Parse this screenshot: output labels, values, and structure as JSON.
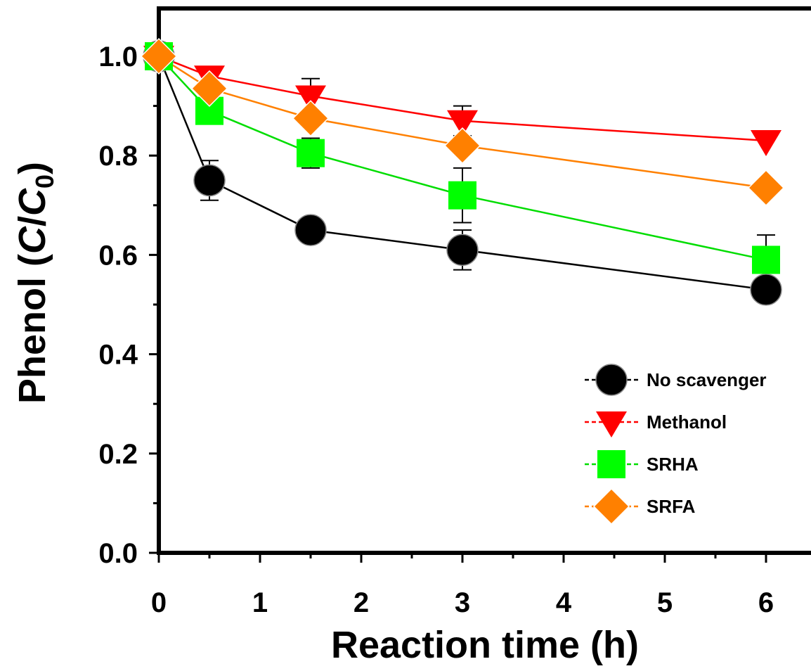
{
  "chart_data": {
    "type": "line",
    "title": "",
    "xlabel": "Reaction time (h)",
    "ylabel": {
      "prefix": "Phenol (",
      "italic_c": "C",
      "slash": "/",
      "italic_c0": "C",
      "subscript": "0",
      "suffix": ")"
    },
    "xlim": [
      0,
      6.25
    ],
    "ylim": [
      0,
      1.0
    ],
    "xticks": [
      "0",
      "1",
      "2",
      "3",
      "4",
      "5",
      "6"
    ],
    "yticks": [
      "0.0",
      "0.2",
      "0.4",
      "0.6",
      "0.8",
      "1.0"
    ],
    "legend_position": "lower-right",
    "grid": false,
    "series": [
      {
        "name": "No scavenger",
        "marker": "circle",
        "color": "#000000",
        "line_color": "#000000",
        "x": [
          0,
          0.5,
          1.5,
          3,
          6
        ],
        "y": [
          1.0,
          0.75,
          0.65,
          0.61,
          0.53
        ],
        "err": [
          0,
          0.04,
          0,
          0.04,
          0
        ]
      },
      {
        "name": "Methanol",
        "marker": "triangle-down",
        "color": "#ff0000",
        "line_color": "#ff0000",
        "x": [
          0,
          0.5,
          1.5,
          3,
          6
        ],
        "y": [
          1.0,
          0.96,
          0.92,
          0.87,
          0.83
        ],
        "err": [
          0,
          0,
          0.035,
          0.03,
          0
        ]
      },
      {
        "name": "SRHA",
        "marker": "square",
        "color": "#00ff00",
        "line_color": "#00dd00",
        "x": [
          0,
          0.5,
          1.5,
          3,
          6
        ],
        "y": [
          1.0,
          0.89,
          0.805,
          0.72,
          0.59
        ],
        "err": [
          0,
          0,
          0.03,
          0.055,
          0.05
        ]
      },
      {
        "name": "SRFA",
        "marker": "diamond",
        "color": "#ff8000",
        "line_color": "#ff8000",
        "x": [
          0,
          0.5,
          1.5,
          3,
          6
        ],
        "y": [
          1.0,
          0.935,
          0.875,
          0.82,
          0.735
        ],
        "err": [
          0,
          0,
          0,
          0,
          0
        ]
      }
    ]
  }
}
